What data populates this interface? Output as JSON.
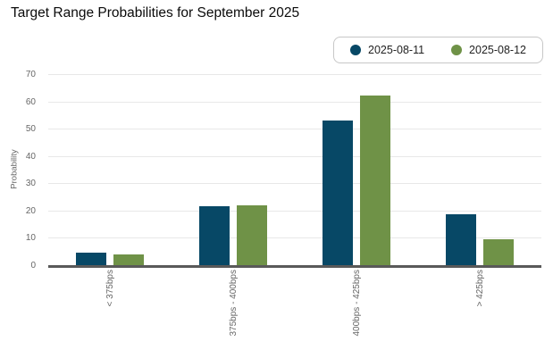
{
  "title": "Target Range Probabilities for September 2025",
  "colors": {
    "series_blue": "#074866",
    "series_green": "#6f9247",
    "gridline": "#e8e8e8",
    "axis_line": "#595959",
    "muted_text": "#666666"
  },
  "legend": {
    "items": [
      {
        "label": "2025-08-11",
        "color": "#074866"
      },
      {
        "label": "2025-08-12",
        "color": "#6f9247"
      }
    ]
  },
  "chart_data": {
    "type": "bar",
    "title": "Target Range Probabilities for September 2025",
    "categories": [
      "< 375bps",
      "375bps - 400bps",
      "400bps - 425bps",
      "> 425bps"
    ],
    "series": [
      {
        "name": "2025-08-11",
        "color": "#074866",
        "values": [
          5.0,
          21.8,
          53.2,
          19.0
        ]
      },
      {
        "name": "2025-08-12",
        "color": "#6f9247",
        "values": [
          4.4,
          22.2,
          62.6,
          9.7
        ]
      }
    ],
    "xlabel": "",
    "ylabel": "Probability",
    "ylim": [
      0,
      70
    ],
    "yticks": [
      0,
      10,
      20,
      30,
      40,
      50,
      60,
      70
    ],
    "grid": true,
    "legend_position": "top-right"
  }
}
